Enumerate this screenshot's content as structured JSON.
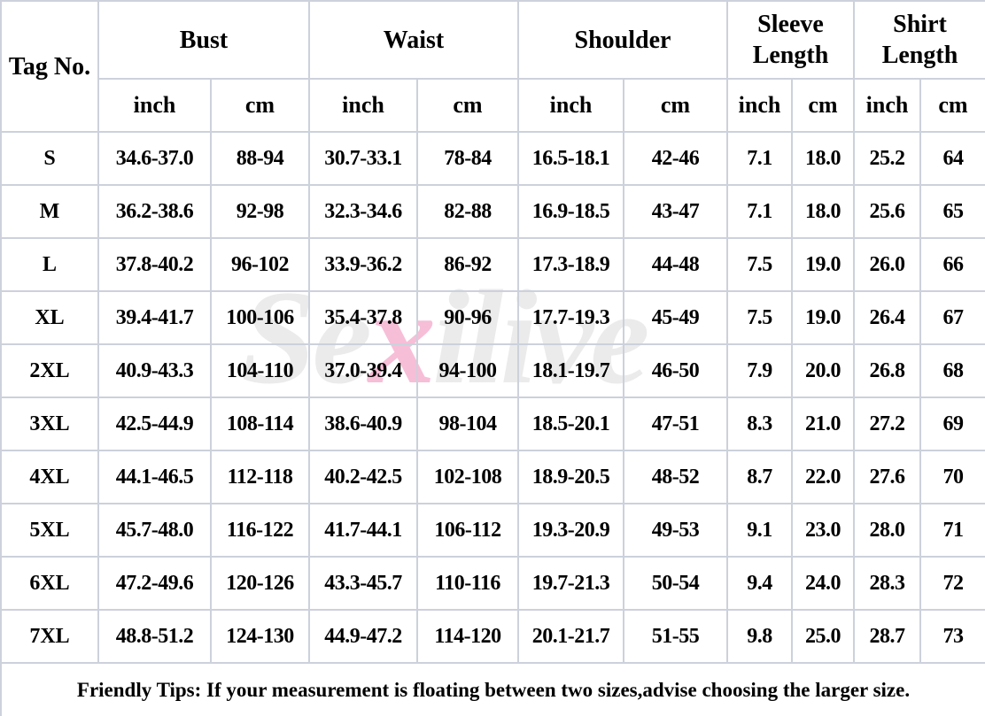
{
  "watermark": {
    "part1": "Se",
    "accent": "x",
    "part2": "ilive",
    "gray_color": "#ebebeb",
    "pink_color": "#f7bed7"
  },
  "table": {
    "corner_label": "Tag No.",
    "groups": [
      "Bust",
      "Waist",
      "Shoulder",
      "Sleeve Length",
      "Shirt Length"
    ],
    "units": [
      "inch",
      "cm",
      "inch",
      "cm",
      "inch",
      "cm",
      "inch",
      "cm",
      "inch",
      "cm"
    ],
    "rows": [
      {
        "tag": "S",
        "values": [
          "34.6-37.0",
          "88-94",
          "30.7-33.1",
          "78-84",
          "16.5-18.1",
          "42-46",
          "7.1",
          "18.0",
          "25.2",
          "64"
        ]
      },
      {
        "tag": "M",
        "values": [
          "36.2-38.6",
          "92-98",
          "32.3-34.6",
          "82-88",
          "16.9-18.5",
          "43-47",
          "7.1",
          "18.0",
          "25.6",
          "65"
        ]
      },
      {
        "tag": "L",
        "values": [
          "37.8-40.2",
          "96-102",
          "33.9-36.2",
          "86-92",
          "17.3-18.9",
          "44-48",
          "7.5",
          "19.0",
          "26.0",
          "66"
        ]
      },
      {
        "tag": "XL",
        "values": [
          "39.4-41.7",
          "100-106",
          "35.4-37.8",
          "90-96",
          "17.7-19.3",
          "45-49",
          "7.5",
          "19.0",
          "26.4",
          "67"
        ]
      },
      {
        "tag": "2XL",
        "values": [
          "40.9-43.3",
          "104-110",
          "37.0-39.4",
          "94-100",
          "18.1-19.7",
          "46-50",
          "7.9",
          "20.0",
          "26.8",
          "68"
        ]
      },
      {
        "tag": "3XL",
        "values": [
          "42.5-44.9",
          "108-114",
          "38.6-40.9",
          "98-104",
          "18.5-20.1",
          "47-51",
          "8.3",
          "21.0",
          "27.2",
          "69"
        ]
      },
      {
        "tag": "4XL",
        "values": [
          "44.1-46.5",
          "112-118",
          "40.2-42.5",
          "102-108",
          "18.9-20.5",
          "48-52",
          "8.7",
          "22.0",
          "27.6",
          "70"
        ]
      },
      {
        "tag": "5XL",
        "values": [
          "45.7-48.0",
          "116-122",
          "41.7-44.1",
          "106-112",
          "19.3-20.9",
          "49-53",
          "9.1",
          "23.0",
          "28.0",
          "71"
        ]
      },
      {
        "tag": "6XL",
        "values": [
          "47.2-49.6",
          "120-126",
          "43.3-45.7",
          "110-116",
          "19.7-21.3",
          "50-54",
          "9.4",
          "24.0",
          "28.3",
          "72"
        ]
      },
      {
        "tag": "7XL",
        "values": [
          "48.8-51.2",
          "124-130",
          "44.9-47.2",
          "114-120",
          "20.1-21.7",
          "51-55",
          "9.8",
          "25.0",
          "28.7",
          "73"
        ]
      }
    ]
  },
  "footer": {
    "tip": "Friendly Tips: If your measurement is floating between two sizes,advise choosing the larger size.",
    "color": "#ee1111"
  }
}
